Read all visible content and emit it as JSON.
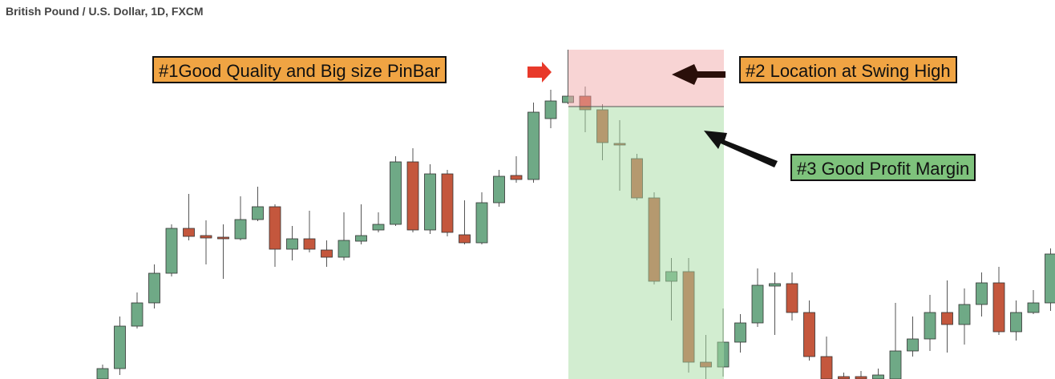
{
  "chart_data": {
    "type": "candlestick",
    "title": "British Pound / U.S. Dollar, 1D, FXCM",
    "ylim": [
      0,
      473
    ],
    "up_color": "#6fa986",
    "down_color": "#c4573d",
    "open": [
      0,
      13,
      66,
      95,
      132,
      188,
      179,
      177,
      175,
      199,
      215,
      162,
      175,
      161,
      152,
      172,
      186,
      193,
      271,
      186,
      256,
      180,
      170,
      220,
      254,
      249,
      325,
      345,
      353,
      336,
      294,
      275,
      226,
      122,
      134,
      21,
      15,
      46,
      70,
      116,
      119,
      83,
      28,
      3,
      3,
      0,
      0,
      35,
      50,
      83,
      68,
      93,
      120,
      59,
      83,
      95
    ],
    "high": [
      18,
      78,
      108,
      143,
      193,
      231,
      198,
      193,
      228,
      240,
      218,
      191,
      210,
      173,
      208,
      218,
      208,
      278,
      288,
      268,
      261,
      223,
      233,
      261,
      278,
      345,
      361,
      411,
      365,
      343,
      323,
      281,
      233,
      151,
      151,
      55,
      88,
      81,
      138,
      133,
      133,
      98,
      53,
      8,
      10,
      13,
      95,
      78,
      105,
      123,
      113,
      133,
      140,
      98,
      111,
      163
    ],
    "low": [
      0,
      5,
      63,
      88,
      128,
      173,
      143,
      125,
      173,
      197,
      140,
      148,
      158,
      140,
      148,
      168,
      183,
      191,
      183,
      181,
      178,
      168,
      168,
      215,
      245,
      245,
      313,
      343,
      308,
      273,
      235,
      223,
      118,
      73,
      8,
      0,
      3,
      33,
      65,
      55,
      73,
      23,
      0,
      0,
      0,
      0,
      0,
      28,
      35,
      33,
      43,
      78,
      55,
      48,
      81,
      85
    ],
    "close": [
      13,
      66,
      95,
      132,
      188,
      178,
      176,
      175,
      199,
      215,
      162,
      175,
      162,
      152,
      173,
      179,
      193,
      271,
      186,
      256,
      183,
      170,
      220,
      253,
      249,
      333,
      347,
      353,
      336,
      295,
      292,
      226,
      122,
      134,
      21,
      15,
      46,
      70,
      117,
      119,
      83,
      28,
      0,
      0,
      0,
      5,
      35,
      50,
      83,
      68,
      93,
      120,
      59,
      83,
      95,
      156
    ],
    "zones": [
      {
        "top": 411,
        "bottom": 340,
        "color": "#f2a9a9"
      },
      {
        "top": 340,
        "bottom": 0,
        "color": "#a6dca2"
      }
    ],
    "annotations": [
      {
        "text": "#1Good Quality and Big size PinBar",
        "color": "#f0a443"
      },
      {
        "text": "#2 Location at Swing High",
        "color": "#f0a443"
      },
      {
        "text": "#3 Good Profit Margin",
        "color": "#7ec27c"
      }
    ]
  }
}
